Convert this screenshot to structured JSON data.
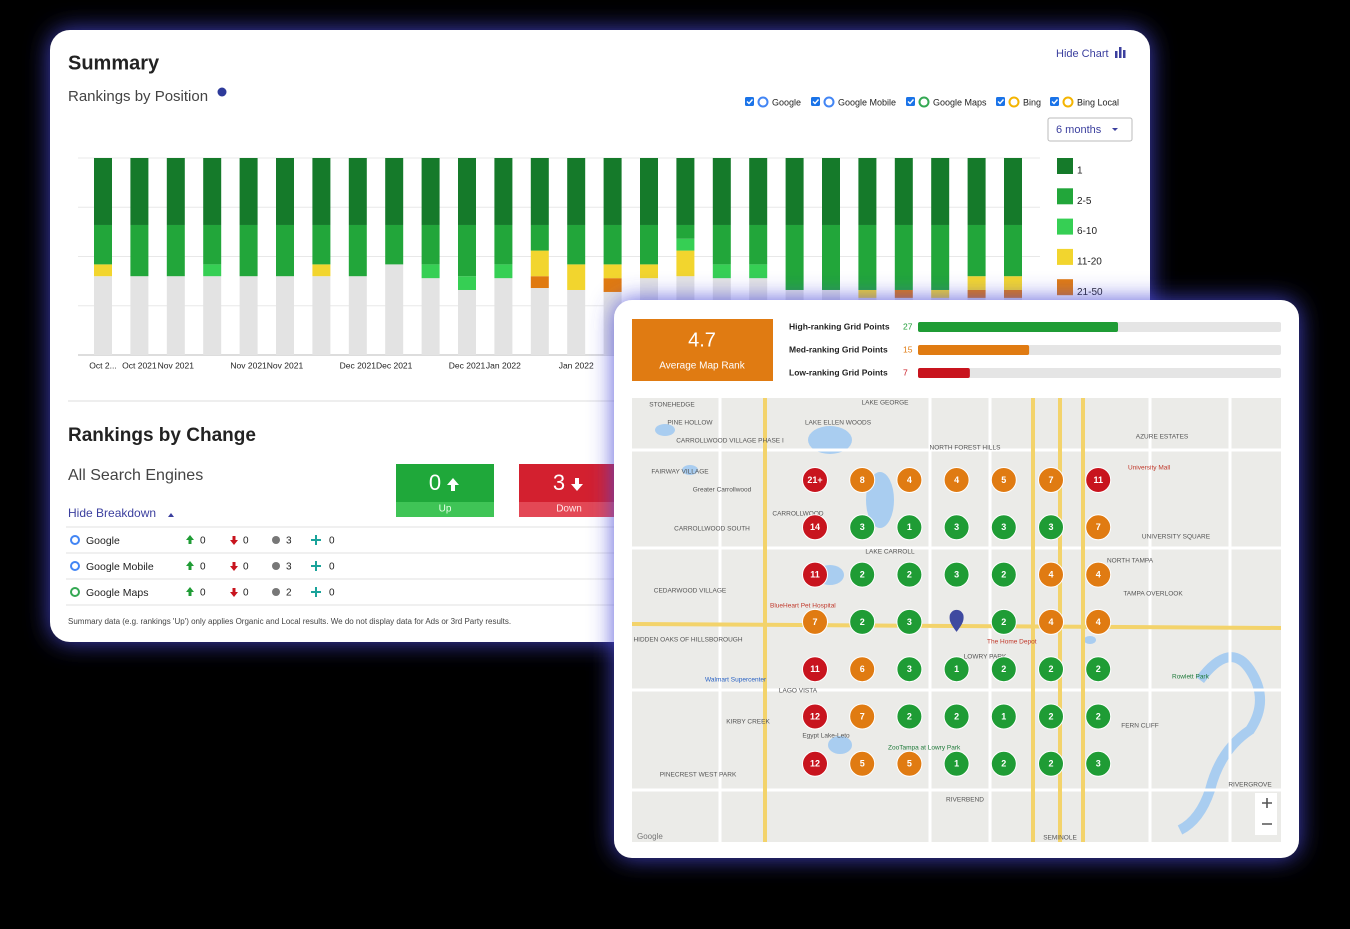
{
  "summary": {
    "title": "Summary",
    "hide_chart": "Hide Chart",
    "subtitle": "Rankings by Position",
    "engines": [
      "Google",
      "Google Mobile",
      "Google Maps",
      "Bing",
      "Bing Local"
    ],
    "period": "6 months"
  },
  "chart_data": {
    "type": "bar",
    "stacked": true,
    "categories": [
      "Oct 2...",
      "Oct 2021",
      "Nov 2021",
      null,
      "Nov 2021",
      "Nov 2021",
      null,
      "Dec 2021",
      "Dec 2021",
      null,
      "Dec 2021",
      "Jan 2022",
      null,
      "Jan 2022",
      null,
      null,
      null,
      null,
      null,
      null,
      null,
      null,
      null,
      null,
      null,
      null
    ],
    "ylim": [
      0,
      100
    ],
    "yticks": [
      0,
      25,
      50,
      75,
      100
    ],
    "grid": true,
    "series": [
      {
        "name": "1",
        "color": "#157a2a",
        "values": [
          34,
          34,
          34,
          34,
          34,
          34,
          34,
          34,
          34,
          34,
          34,
          34,
          34,
          34,
          34,
          34,
          34,
          34,
          34,
          34,
          34,
          34,
          34,
          34,
          34,
          34
        ]
      },
      {
        "name": "2-5",
        "color": "#22a63a",
        "values": [
          20,
          26,
          26,
          20,
          26,
          26,
          20,
          26,
          20,
          20,
          26,
          20,
          13,
          20,
          20,
          20,
          7,
          20,
          20,
          33,
          33,
          33,
          33,
          33,
          26,
          26
        ]
      },
      {
        "name": "6-10",
        "color": "#36cf54",
        "values": [
          0,
          0,
          0,
          6,
          0,
          0,
          0,
          0,
          0,
          7,
          7,
          7,
          0,
          0,
          0,
          0,
          6,
          7,
          7,
          0,
          0,
          0,
          0,
          0,
          0,
          0
        ]
      },
      {
        "name": "11-20",
        "color": "#f2d52e",
        "values": [
          6,
          0,
          0,
          0,
          0,
          0,
          6,
          0,
          0,
          0,
          0,
          0,
          13,
          13,
          7,
          7,
          13,
          0,
          0,
          0,
          0,
          4,
          0,
          4,
          7,
          7
        ]
      },
      {
        "name": "21-50",
        "color": "#e07a10",
        "values": [
          0,
          0,
          0,
          0,
          0,
          0,
          0,
          0,
          0,
          0,
          0,
          0,
          6,
          0,
          7,
          0,
          0,
          0,
          0,
          0,
          0,
          0,
          4,
          0,
          4,
          4
        ]
      },
      {
        "name": null,
        "color": "#e3e3e3",
        "values": [
          40,
          40,
          40,
          40,
          40,
          40,
          40,
          40,
          46,
          39,
          33,
          39,
          34,
          33,
          32,
          39,
          40,
          39,
          39,
          33,
          33,
          29,
          29,
          29,
          29,
          29
        ]
      }
    ]
  },
  "change": {
    "title": "Rankings by Change",
    "subtitle": "All Search Engines",
    "toggle": "Hide Breakdown",
    "up": {
      "value": 0,
      "label": "Up"
    },
    "down": {
      "value": 3,
      "label": "Down"
    },
    "rows": [
      {
        "engine": "Google",
        "up": 0,
        "down": 0,
        "same": 3,
        "new": 0
      },
      {
        "engine": "Google Mobile",
        "up": 0,
        "down": 0,
        "same": 3,
        "new": 0
      },
      {
        "engine": "Google Maps",
        "up": 0,
        "down": 0,
        "same": 2,
        "new": 0
      }
    ],
    "footnote": "Summary data (e.g. rankings 'Up') only applies Organic and Local results. We do not display data for Ads or 3rd Party results."
  },
  "map": {
    "average": 4.7,
    "average_label": "Average Map Rank",
    "tiers": [
      {
        "name": "High-ranking Grid Points",
        "count": 27,
        "color": "#1f9c35"
      },
      {
        "name": "Med-ranking Grid Points",
        "count": 15,
        "color": "#e07b12"
      },
      {
        "name": "Low-ranking Grid Points",
        "count": 7,
        "color": "#c8141e"
      }
    ],
    "grid": [
      [
        {
          "value": 21,
          "label": "21+"
        },
        8,
        4,
        4,
        5,
        7,
        11
      ],
      [
        14,
        3,
        1,
        3,
        3,
        3,
        7
      ],
      [
        11,
        2,
        2,
        3,
        2,
        4,
        4
      ],
      [
        7,
        2,
        3,
        null,
        2,
        4,
        4
      ],
      [
        11,
        6,
        3,
        1,
        2,
        2,
        2
      ],
      [
        12,
        7,
        2,
        2,
        1,
        2,
        2
      ],
      [
        12,
        5,
        5,
        1,
        2,
        2,
        3
      ]
    ],
    "labels": [
      "STONEHEDGE",
      "LAKE GEORGE",
      "PINE HOLLOW",
      "LAKE ELLEN WOODS",
      "CARROLLWOOD VILLAGE PHASE I",
      "NORTH FOREST HILLS",
      "AZURE ESTATES",
      "FAIRWAY VILLAGE",
      "Greater Carrollwood",
      "CARROLLWOOD",
      "CARROLLWOOD SOUTH",
      "LAKE CARROLL",
      "UNIVERSITY SQUARE",
      "NORTH TAMPA",
      "CEDARWOOD VILLAGE",
      "TAMPA OVERLOOK",
      "HIDDEN OAKS OF HILLSBOROUGH",
      "LOWRY PARK",
      "LAGO VISTA",
      "KIRBY CREEK",
      "Egypt Lake-Leto",
      "PINECREST WEST PARK",
      "RIVERBEND",
      "FERN CLIFF",
      "RIVERGROVE",
      "SEMINOLE",
      "University Mall",
      "The Home Depot",
      "BlueHeart Pet Hospital",
      "Walmart Supercenter",
      "ZooTampa at Lowry Park",
      "Rowlett Park",
      "Google"
    ]
  }
}
